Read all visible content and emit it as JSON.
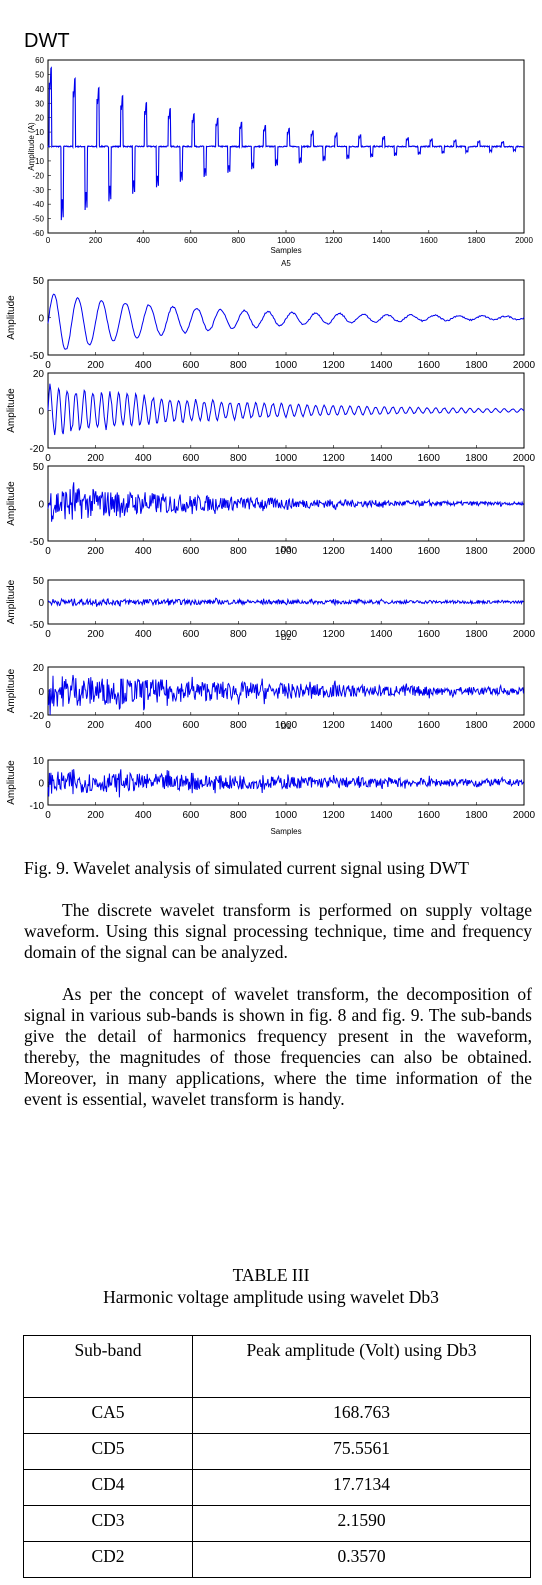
{
  "heading": "DWT",
  "top_plot": {
    "ylabel": "Amplitude (A)",
    "xlabel": "Samples",
    "yticks": [
      "60",
      "50",
      "40",
      "30",
      "20",
      "10",
      "0",
      "-10",
      "-20",
      "-30",
      "-40",
      "-50",
      "-60"
    ],
    "xticks": [
      "0",
      "200",
      "400",
      "600",
      "800",
      "1000",
      "1200",
      "1400",
      "1600",
      "1800",
      "2000"
    ],
    "bottom_label": "A5"
  },
  "chart_data": [
    {
      "type": "line",
      "title": "",
      "xlabel": "Samples",
      "ylabel": "Amplitude (A)",
      "xlim": [
        0,
        2000
      ],
      "ylim": [
        -60,
        60
      ],
      "series": [
        {
          "x": [
            0,
            2000
          ],
          "values": [
            57,
            3
          ],
          "values_min": [
            -57,
            -3
          ]
        }
      ]
    },
    {
      "type": "line",
      "xlim": [
        0,
        2000
      ],
      "ylim": [
        -50,
        50
      ],
      "ylabel": "Amplitude",
      "xlabel": "",
      "title": "",
      "series": [
        {
          "x": [
            0,
            2000
          ],
          "values": [
            40,
            2
          ]
        }
      ]
    },
    {
      "type": "line",
      "xlim": [
        0,
        2000
      ],
      "ylim": [
        -20,
        20
      ],
      "ylabel": "Amplitude",
      "xlabel": "",
      "title": "",
      "series": [
        {
          "x": [
            0,
            2000
          ],
          "values": [
            15,
            1
          ]
        }
      ]
    },
    {
      "type": "line",
      "xlim": [
        0,
        2000
      ],
      "ylim": [
        -50,
        50
      ],
      "ylabel": "Amplitude",
      "xlabel": "",
      "title": "",
      "series": [
        {
          "x": [
            0,
            2000
          ],
          "values": [
            25,
            2
          ]
        }
      ]
    },
    {
      "type": "line",
      "xlim": [
        0,
        2000
      ],
      "ylim": [
        -50,
        50
      ],
      "ylabel": "Amplitude",
      "xlabel": "",
      "title": "",
      "series": [
        {
          "x": [
            0,
            2000
          ],
          "values": [
            8,
            3
          ]
        }
      ]
    },
    {
      "type": "line",
      "xlim": [
        0,
        2000
      ],
      "ylim": [
        -20,
        20
      ],
      "ylabel": "Amplitude",
      "xlabel": "",
      "title": "",
      "series": [
        {
          "x": [
            0,
            2000
          ],
          "values": [
            14,
            3
          ]
        }
      ]
    },
    {
      "type": "line",
      "xlim": [
        0,
        2000
      ],
      "ylim": [
        -10,
        10
      ],
      "ylabel": "Amplitude",
      "xlabel": "Samples",
      "title": "",
      "series": [
        {
          "x": [
            0,
            2000
          ],
          "values": [
            5,
            1.5
          ]
        }
      ]
    }
  ],
  "subplots": [
    {
      "ylabel": "Amplitude",
      "yticks": [
        "50",
        "0",
        "-50"
      ],
      "label_below": ""
    },
    {
      "ylabel": "Amplitude",
      "yticks": [
        "20",
        "0",
        "-20"
      ],
      "label_below": ""
    },
    {
      "ylabel": "Amplitude",
      "yticks": [
        "50",
        "0",
        "-50"
      ],
      "label_below": "D3"
    },
    {
      "ylabel": "Amplitude",
      "yticks": [
        "50",
        "0",
        "-50"
      ],
      "label_below": "D2"
    },
    {
      "ylabel": "Amplitude",
      "yticks": [
        "20",
        "0",
        "-20"
      ],
      "label_below": "D1"
    },
    {
      "ylabel": "Amplitude",
      "yticks": [
        "10",
        "0",
        "-10"
      ],
      "label_below": "Samples"
    }
  ],
  "sub_xticks": [
    "0",
    "200",
    "400",
    "600",
    "800",
    "1000",
    "1200",
    "1400",
    "1600",
    "1800",
    "2000"
  ],
  "caption": "Fig. 9. Wavelet analysis of simulated current signal using DWT",
  "paragraphs": [
    "The discrete wavelet transform is performed on supply voltage waveform. Using this signal processing technique, time and frequency domain of the signal can be analyzed.",
    "As per the concept of wavelet transform, the decomposition of signal in various sub-bands is shown in fig. 8 and fig. 9. The sub-bands give the detail of harmonics frequency present in the waveform, thereby, the magnitudes of those frequencies can also be obtained. Moreover, in many applications, where the time information of the event is essential, wavelet transform is handy."
  ],
  "table": {
    "title": "TABLE III",
    "subtitle": "Harmonic voltage amplitude using wavelet Db3",
    "headers": [
      "Sub-band",
      "Peak amplitude (Volt) using Db3"
    ],
    "rows": [
      [
        "CA5",
        "168.763"
      ],
      [
        "CD5",
        "75.5561"
      ],
      [
        "CD4",
        "17.7134"
      ],
      [
        "CD3",
        "2.1590"
      ],
      [
        "CD2",
        "0.3570"
      ]
    ]
  },
  "colors": {
    "signal": "#0000ee",
    "axes": "#000000"
  }
}
